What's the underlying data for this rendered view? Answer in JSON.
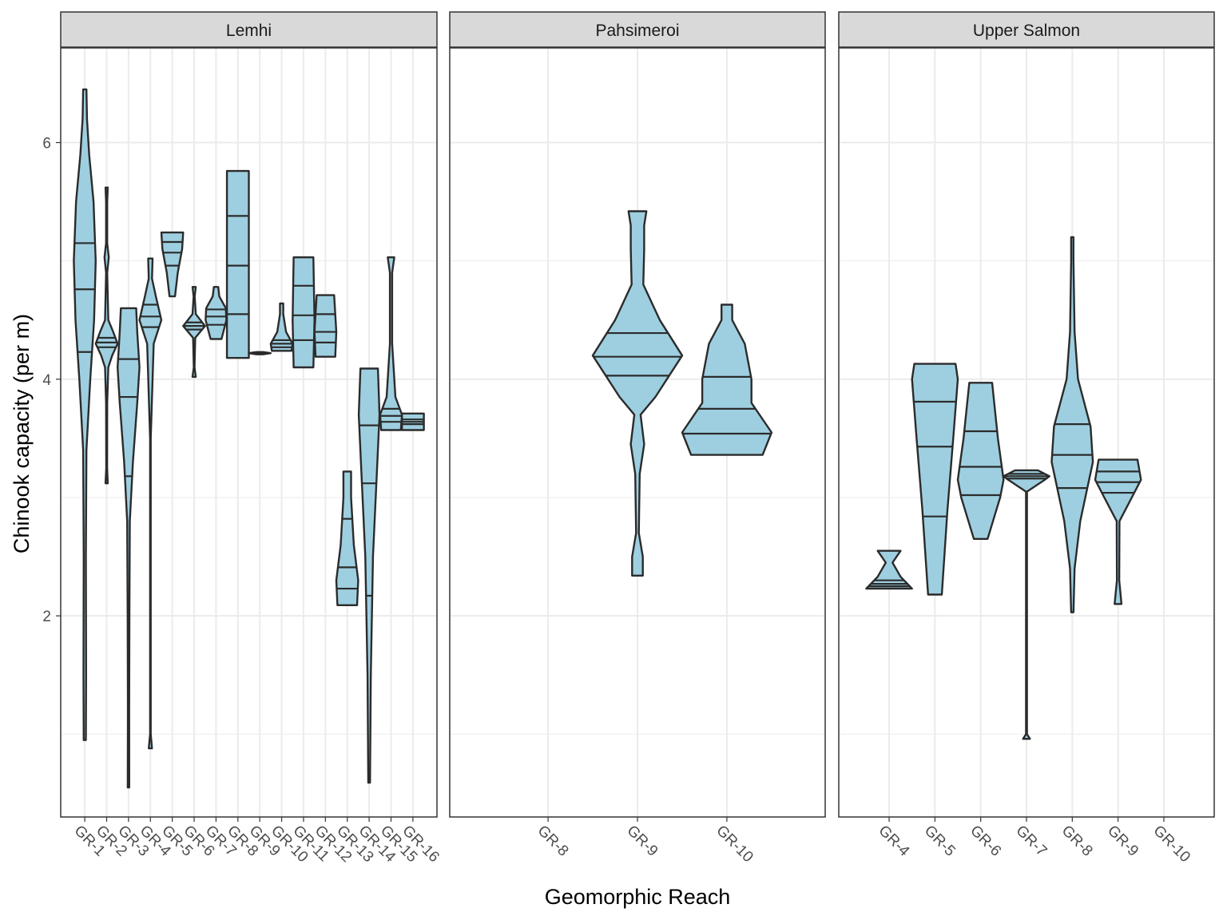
{
  "chart_data": {
    "type": "violin",
    "xlabel": "Geomorphic Reach",
    "ylabel": "Chinook capacity (per m)",
    "y_range": [
      0.3,
      6.8
    ],
    "y_ticks": [
      2,
      4,
      6
    ],
    "grid": true,
    "colors": {
      "fill": "#9ecfe0",
      "stroke": "#2b2b2b",
      "strip": "#d9d9d9",
      "grid": "#ebebeb"
    },
    "facets": [
      {
        "name": "Lemhi",
        "categories": [
          "GR-1",
          "GR-2",
          "GR-3",
          "GR-4",
          "GR-5",
          "GR-6",
          "GR-7",
          "GR-8",
          "GR-9",
          "GR-10",
          "GR-11",
          "GR-12",
          "GR-13",
          "GR-14",
          "GR-15",
          "GR-16"
        ],
        "violins": [
          {
            "x": "GR-1",
            "ymin": 0.95,
            "ymax": 6.45,
            "q": [
              4.23,
              4.76,
              5.15
            ],
            "prof": [
              [
                0.95,
                0.1
              ],
              [
                1.5,
                0.12
              ],
              [
                2.5,
                0.1
              ],
              [
                3.4,
                0.15
              ],
              [
                4.0,
                0.5
              ],
              [
                4.5,
                0.85
              ],
              [
                5.0,
                1.0
              ],
              [
                5.5,
                0.8
              ],
              [
                5.9,
                0.4
              ],
              [
                6.2,
                0.2
              ],
              [
                6.45,
                0.15
              ]
            ]
          },
          {
            "x": "GR-2",
            "ymin": 3.12,
            "ymax": 5.62,
            "q": [
              4.27,
              4.31,
              4.35
            ],
            "prof": [
              [
                3.12,
                0.1
              ],
              [
                3.25,
                0.04
              ],
              [
                3.8,
                0.05
              ],
              [
                4.1,
                0.15
              ],
              [
                4.2,
                0.5
              ],
              [
                4.3,
                1.0
              ],
              [
                4.4,
                0.6
              ],
              [
                4.5,
                0.15
              ],
              [
                4.9,
                0.05
              ],
              [
                5.03,
                0.2
              ],
              [
                5.15,
                0.05
              ],
              [
                5.5,
                0.05
              ],
              [
                5.62,
                0.1
              ]
            ]
          },
          {
            "x": "GR-3",
            "ymin": 0.55,
            "ymax": 4.6,
            "q": [
              3.18,
              3.85,
              4.17
            ],
            "prof": [
              [
                0.55,
                0.07
              ],
              [
                1.2,
                0.06
              ],
              [
                2.0,
                0.08
              ],
              [
                2.8,
                0.12
              ],
              [
                3.3,
                0.4
              ],
              [
                3.8,
                0.8
              ],
              [
                4.1,
                1.0
              ],
              [
                4.4,
                0.8
              ],
              [
                4.6,
                0.7
              ]
            ]
          },
          {
            "x": "GR-4",
            "ymin": 0.88,
            "ymax": 5.02,
            "q": [
              4.44,
              4.53,
              4.63
            ],
            "prof": [
              [
                0.88,
                0.15
              ],
              [
                1.0,
                0.03
              ],
              [
                3.5,
                0.03
              ],
              [
                4.3,
                0.3
              ],
              [
                4.5,
                1.0
              ],
              [
                4.7,
                0.5
              ],
              [
                4.85,
                0.15
              ],
              [
                5.02,
                0.2
              ]
            ]
          },
          {
            "x": "GR-5",
            "ymin": 4.7,
            "ymax": 5.24,
            "q": [
              4.96,
              5.07,
              5.16
            ],
            "prof": [
              [
                4.7,
                0.25
              ],
              [
                4.9,
                0.5
              ],
              [
                5.1,
                0.9
              ],
              [
                5.24,
                1.0
              ]
            ]
          },
          {
            "x": "GR-6",
            "ymin": 4.02,
            "ymax": 4.78,
            "q": [
              4.42,
              4.45,
              4.48
            ],
            "prof": [
              [
                4.02,
                0.15
              ],
              [
                4.1,
                0.03
              ],
              [
                4.35,
                0.1
              ],
              [
                4.45,
                1.0
              ],
              [
                4.55,
                0.15
              ],
              [
                4.7,
                0.05
              ],
              [
                4.78,
                0.15
              ]
            ]
          },
          {
            "x": "GR-7",
            "ymin": 4.34,
            "ymax": 4.78,
            "q": [
              4.46,
              4.53,
              4.59
            ],
            "prof": [
              [
                4.34,
                0.5
              ],
              [
                4.5,
                0.95
              ],
              [
                4.6,
                0.9
              ],
              [
                4.7,
                0.3
              ],
              [
                4.78,
                0.2
              ]
            ]
          },
          {
            "x": "GR-8",
            "ymin": 4.18,
            "ymax": 5.76,
            "q": [
              4.55,
              4.96,
              5.38
            ],
            "prof": [
              [
                4.18,
                1.0
              ],
              [
                5.76,
                1.0
              ]
            ]
          },
          {
            "x": "GR-9",
            "ymin": 4.21,
            "ymax": 4.23,
            "q": [
              4.22,
              4.22,
              4.22
            ],
            "prof": [
              [
                4.21,
                0.3
              ],
              [
                4.22,
                1.0
              ],
              [
                4.23,
                0.3
              ]
            ]
          },
          {
            "x": "GR-10",
            "ymin": 4.24,
            "ymax": 4.64,
            "q": [
              4.27,
              4.3,
              4.33
            ],
            "prof": [
              [
                4.24,
                0.9
              ],
              [
                4.3,
                1.0
              ],
              [
                4.4,
                0.4
              ],
              [
                4.55,
                0.15
              ],
              [
                4.64,
                0.15
              ]
            ]
          },
          {
            "x": "GR-11",
            "ymin": 4.1,
            "ymax": 5.03,
            "q": [
              4.33,
              4.54,
              4.79
            ],
            "prof": [
              [
                4.1,
                0.9
              ],
              [
                4.5,
                1.0
              ],
              [
                5.03,
                0.9
              ]
            ]
          },
          {
            "x": "GR-12",
            "ymin": 4.19,
            "ymax": 4.71,
            "q": [
              4.31,
              4.4,
              4.55
            ],
            "prof": [
              [
                4.19,
                0.9
              ],
              [
                4.4,
                1.0
              ],
              [
                4.71,
                0.8
              ]
            ]
          },
          {
            "x": "GR-13",
            "ymin": 2.09,
            "ymax": 3.22,
            "q": [
              2.23,
              2.41,
              2.82
            ],
            "prof": [
              [
                2.09,
                0.9
              ],
              [
                2.3,
                1.0
              ],
              [
                2.6,
                0.6
              ],
              [
                3.0,
                0.35
              ],
              [
                3.22,
                0.35
              ]
            ]
          },
          {
            "x": "GR-14",
            "ymin": 0.59,
            "ymax": 4.09,
            "q": [
              2.17,
              3.12,
              3.61
            ],
            "prof": [
              [
                0.59,
                0.08
              ],
              [
                1.5,
                0.15
              ],
              [
                2.5,
                0.35
              ],
              [
                3.2,
                0.7
              ],
              [
                3.7,
                0.95
              ],
              [
                4.09,
                0.8
              ]
            ]
          },
          {
            "x": "GR-15",
            "ymin": 3.57,
            "ymax": 5.03,
            "q": [
              3.64,
              3.69,
              3.75
            ],
            "prof": [
              [
                3.57,
                0.9
              ],
              [
                3.7,
                1.0
              ],
              [
                3.85,
                0.4
              ],
              [
                4.3,
                0.1
              ],
              [
                4.9,
                0.1
              ],
              [
                5.03,
                0.3
              ]
            ]
          },
          {
            "x": "GR-16",
            "ymin": 3.57,
            "ymax": 3.71,
            "q": [
              3.62,
              3.64,
              3.66
            ],
            "prof": [
              [
                3.57,
                1.0
              ],
              [
                3.71,
                1.0
              ]
            ]
          }
        ]
      },
      {
        "name": "Pahsimeroi",
        "categories": [
          "GR-8",
          "GR-9",
          "GR-10"
        ],
        "violins": [
          {
            "x": "GR-9",
            "ymin": 2.34,
            "ymax": 5.42,
            "q": [
              4.03,
              4.19,
              4.39
            ],
            "prof": [
              [
                2.34,
                0.12
              ],
              [
                2.5,
                0.12
              ],
              [
                2.7,
                0.03
              ],
              [
                3.2,
                0.05
              ],
              [
                3.45,
                0.15
              ],
              [
                3.7,
                0.07
              ],
              [
                3.85,
                0.4
              ],
              [
                4.2,
                1.0
              ],
              [
                4.5,
                0.5
              ],
              [
                4.8,
                0.13
              ],
              [
                5.1,
                0.15
              ],
              [
                5.3,
                0.15
              ],
              [
                5.42,
                0.2
              ]
            ]
          },
          {
            "x": "GR-10",
            "ymin": 3.36,
            "ymax": 4.63,
            "q": [
              3.54,
              3.75,
              4.02
            ],
            "prof": [
              [
                3.36,
                0.8
              ],
              [
                3.55,
                1.0
              ],
              [
                3.8,
                0.55
              ],
              [
                4.0,
                0.55
              ],
              [
                4.3,
                0.4
              ],
              [
                4.5,
                0.12
              ],
              [
                4.63,
                0.12
              ]
            ]
          }
        ]
      },
      {
        "name": "Upper Salmon",
        "categories": [
          "GR-4",
          "GR-5",
          "GR-6",
          "GR-7",
          "GR-8",
          "GR-9",
          "GR-10"
        ],
        "violins": [
          {
            "x": "GR-4",
            "ymin": 2.23,
            "ymax": 2.55,
            "q": [
              2.25,
              2.27,
              2.3
            ],
            "prof": [
              [
                2.23,
                1.0
              ],
              [
                2.33,
                0.5
              ],
              [
                2.45,
                0.15
              ],
              [
                2.55,
                0.5
              ]
            ]
          },
          {
            "x": "GR-5",
            "ymin": 2.18,
            "ymax": 4.13,
            "q": [
              2.84,
              3.43,
              3.81
            ],
            "prof": [
              [
                2.18,
                0.3
              ],
              [
                2.9,
                0.55
              ],
              [
                3.5,
                0.8
              ],
              [
                4.0,
                1.0
              ],
              [
                4.13,
                0.9
              ]
            ]
          },
          {
            "x": "GR-6",
            "ymin": 2.65,
            "ymax": 3.97,
            "q": [
              3.02,
              3.26,
              3.56
            ],
            "prof": [
              [
                2.65,
                0.3
              ],
              [
                3.0,
                0.85
              ],
              [
                3.15,
                1.0
              ],
              [
                3.5,
                0.75
              ],
              [
                3.97,
                0.5
              ]
            ]
          },
          {
            "x": "GR-7",
            "ymin": 0.96,
            "ymax": 3.23,
            "q": [
              3.16,
              3.18,
              3.2
            ],
            "prof": [
              [
                0.96,
                0.15
              ],
              [
                1.0,
                0.02
              ],
              [
                3.05,
                0.02
              ],
              [
                3.15,
                0.8
              ],
              [
                3.18,
                1.0
              ],
              [
                3.23,
                0.5
              ]
            ]
          },
          {
            "x": "GR-8",
            "ymin": 2.03,
            "ymax": 5.2,
            "q": [
              3.08,
              3.36,
              3.62
            ],
            "prof": [
              [
                2.03,
                0.05
              ],
              [
                2.4,
                0.1
              ],
              [
                2.8,
                0.35
              ],
              [
                3.3,
                0.9
              ],
              [
                3.6,
                0.8
              ],
              [
                4.0,
                0.25
              ],
              [
                4.4,
                0.1
              ],
              [
                5.0,
                0.05
              ],
              [
                5.2,
                0.05
              ]
            ]
          },
          {
            "x": "GR-9",
            "ymin": 2.1,
            "ymax": 3.32,
            "q": [
              3.04,
              3.13,
              3.22
            ],
            "prof": [
              [
                2.1,
                0.15
              ],
              [
                2.3,
                0.05
              ],
              [
                2.8,
                0.06
              ],
              [
                3.0,
                0.6
              ],
              [
                3.15,
                1.0
              ],
              [
                3.32,
                0.85
              ]
            ]
          }
        ]
      }
    ]
  }
}
